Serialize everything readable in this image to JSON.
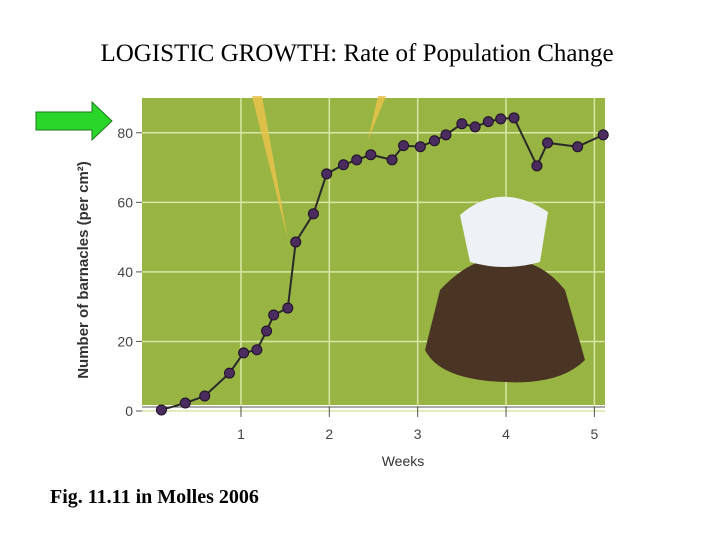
{
  "chart_data": {
    "type": "line",
    "title": "LOGISTIC GROWTH: Rate of Population Change",
    "x_label": "Weeks",
    "y_label": "Number of barnacles (per cm²)",
    "x": [
      0.1,
      0.37,
      0.59,
      0.87,
      1.03,
      1.18,
      1.29,
      1.37,
      1.53,
      1.62,
      1.82,
      1.97,
      2.16,
      2.31,
      2.47,
      2.71,
      2.84,
      3.03,
      3.19,
      3.32,
      3.5,
      3.65,
      3.8,
      3.94,
      4.09,
      4.35,
      4.47,
      4.81,
      5.1
    ],
    "values": [
      0.3,
      2.3,
      4.3,
      10.9,
      16.7,
      17.6,
      23,
      27.6,
      29.6,
      48.6,
      56.7,
      68.2,
      70.8,
      72.2,
      73.7,
      72.2,
      76.3,
      76,
      77.7,
      79.4,
      82.6,
      81.7,
      83.2,
      84,
      84.3,
      70.5,
      77.1,
      76,
      79.4
    ],
    "color": "#4b2c5e",
    "xlim": [
      -0.12,
      5.12
    ],
    "ylim": [
      0,
      90
    ],
    "xticks": [
      1,
      2,
      3,
      4,
      5
    ],
    "yticks": [
      0,
      20,
      40,
      60,
      80
    ],
    "grid": true
  },
  "caption": "Fig. 11.11 in Molles 2006"
}
